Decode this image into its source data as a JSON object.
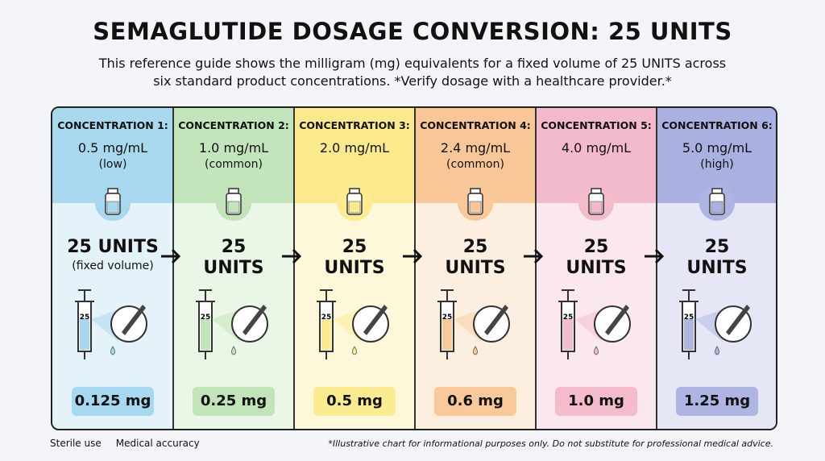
{
  "header": {
    "title": "SEMAGLUTIDE DOSAGE CONVERSION: 25 UNITS",
    "subtitle": "This reference guide shows the milligram (mg) equivalents for a fixed volume of 25 UNITS across six standard product concentrations. *Verify dosage with a healthcare provider.*"
  },
  "columns": [
    {
      "heading": "CONCENTRATION 1:",
      "concentration": "0.5 mg/mL",
      "note": "(low)",
      "volume_lines": [
        "25 UNITS"
      ],
      "volume_note": "(fixed volume)",
      "syringe_label": "25",
      "result": "0.125 mg",
      "top_color": "#a9d9ef",
      "bottom_color": "#e4f2fa",
      "accent": "#a6d8f0"
    },
    {
      "heading": "CONCENTRATION 2:",
      "concentration": "1.0 mg/mL",
      "note": "(common)",
      "volume_lines": [
        "25",
        "UNITS"
      ],
      "syringe_label": "25",
      "result": "0.25 mg",
      "top_color": "#c3e5bb",
      "bottom_color": "#eaf6e6",
      "accent": "#c2e4b9"
    },
    {
      "heading": "CONCENTRATION 3:",
      "concentration": "2.0 mg/mL",
      "syringe_label": "25",
      "volume_lines": [
        "25",
        "UNITS"
      ],
      "result": "0.5 mg",
      "top_color": "#fbea8c",
      "bottom_color": "#fdf8da",
      "accent": "#fbec8f"
    },
    {
      "heading": "CONCENTRATION 4:",
      "concentration": "2.4 mg/mL",
      "note": "(common)",
      "volume_lines": [
        "25",
        "UNITS"
      ],
      "syringe_label": "25",
      "result": "0.6 mg",
      "top_color": "#f9c797",
      "bottom_color": "#fdefe0",
      "accent": "#f9c99a"
    },
    {
      "heading": "CONCENTRATION 5:",
      "concentration": "4.0 mg/mL",
      "volume_lines": [
        "25",
        "UNITS"
      ],
      "syringe_label": "25",
      "result": "1.0 mg",
      "top_color": "#f3bacb",
      "bottom_color": "#fbe8ee",
      "accent": "#f4bccb"
    },
    {
      "heading": "CONCENTRATION 6:",
      "concentration": "5.0 mg/mL",
      "note": "(high)",
      "volume_lines": [
        "25",
        "UNITS"
      ],
      "syringe_label": "25",
      "result": "1.25 mg",
      "top_color": "#aab1e0",
      "bottom_color": "#e5e7f6",
      "accent": "#aeb5e3"
    }
  ],
  "footer": {
    "badges": [
      "Sterile use",
      "Medical accuracy"
    ],
    "disclaimer": "*Illustrative chart for informational purposes only. Do not substitute for professional medical advice."
  }
}
